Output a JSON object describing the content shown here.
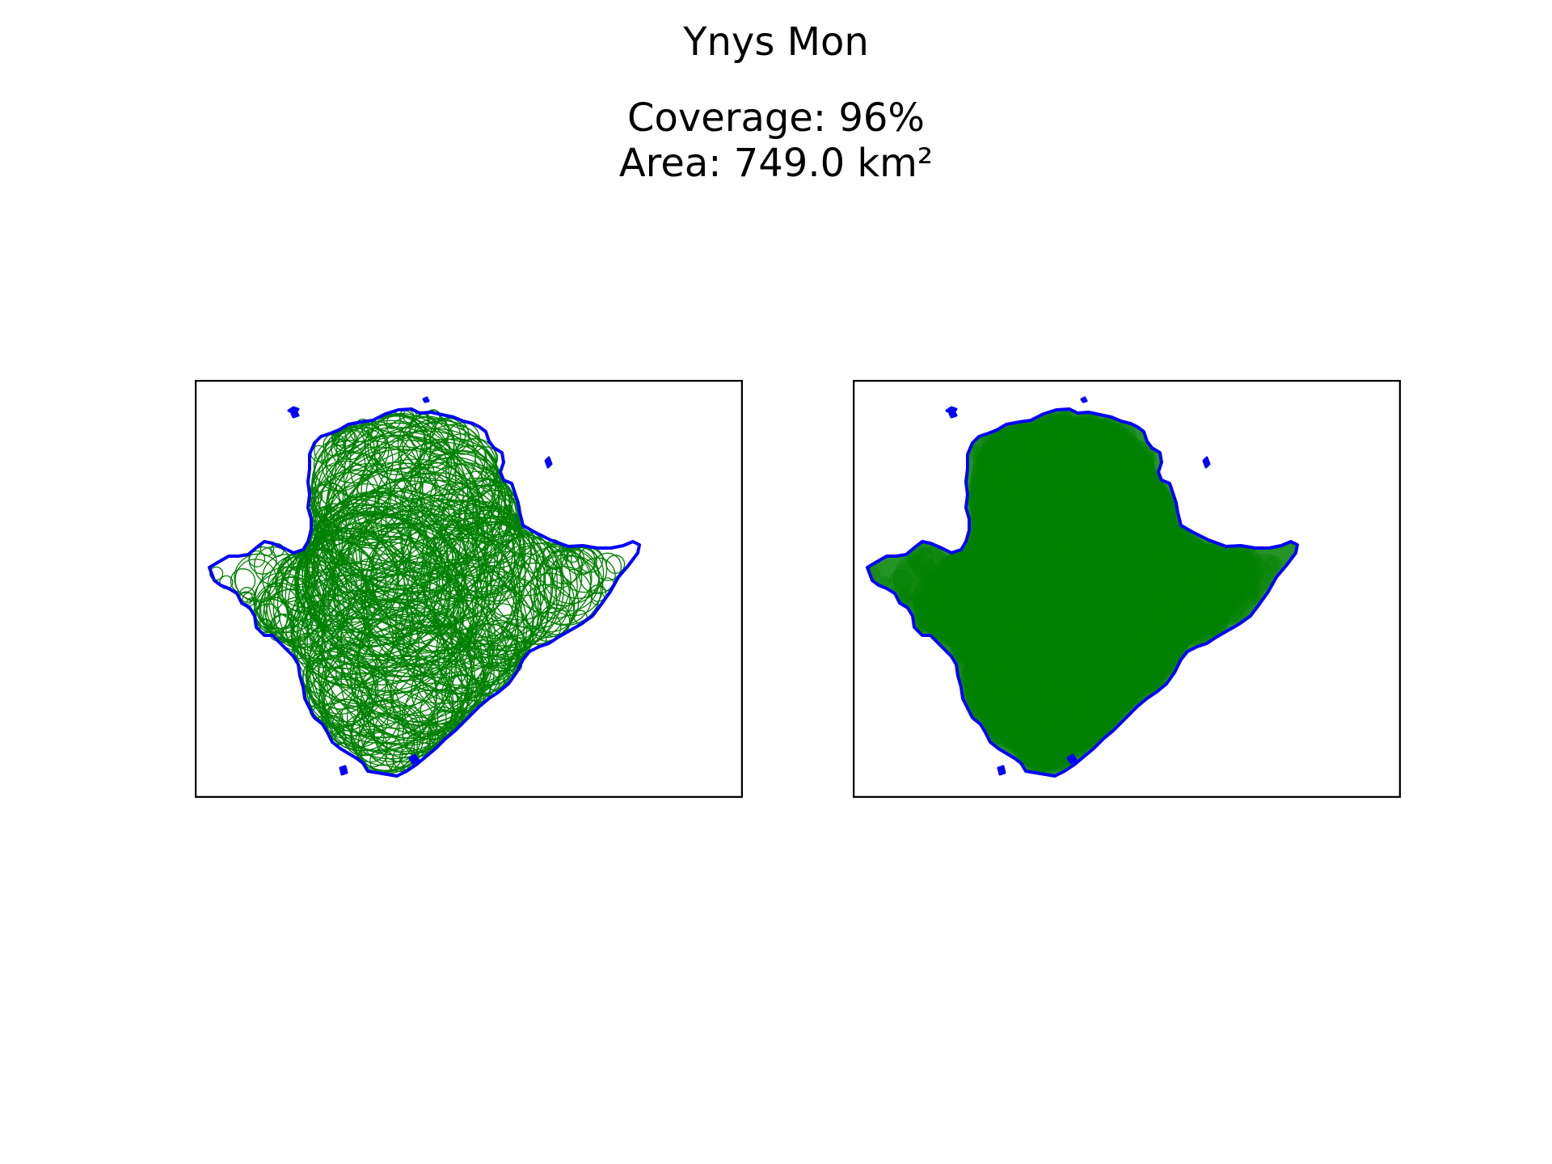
{
  "figure": {
    "title": "Ynys Mon",
    "coverage_text": "Coverage: 96%",
    "area_text": "Area: 749.0 km²"
  },
  "colors": {
    "coastline": "#0000ff",
    "circles": "#008000",
    "frame": "#000000",
    "background": "#ffffff"
  },
  "panels": [
    {
      "name": "circle-outlines",
      "style": "outlined circles"
    },
    {
      "name": "filled-coverage",
      "style": "filled translucent circles"
    }
  ]
}
